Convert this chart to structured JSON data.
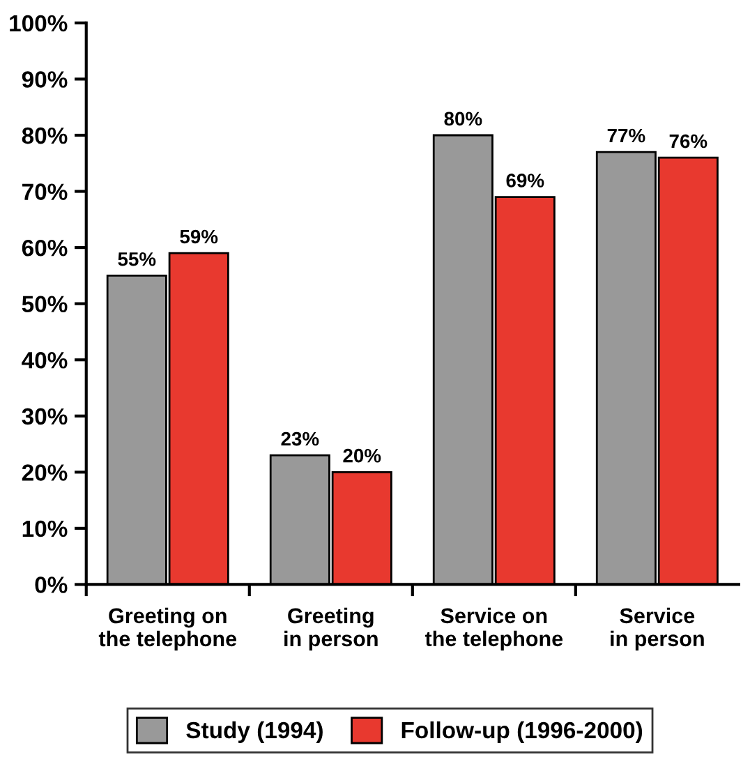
{
  "chart_data": {
    "type": "bar",
    "categories": [
      "Greeting on\nthe telephone",
      "Greeting\nin person",
      "Service on\nthe telephone",
      "Service\nin person"
    ],
    "series": [
      {
        "name": "Study (1994)",
        "color": "#999999",
        "values": [
          55,
          23,
          80,
          77
        ],
        "value_labels": [
          "55%",
          "23%",
          "80%",
          "77%"
        ]
      },
      {
        "name": "Follow-up (1996-2000)",
        "color": "#e8392f",
        "values": [
          59,
          20,
          69,
          76
        ],
        "value_labels": [
          "59%",
          "20%",
          "69%",
          "76%"
        ]
      }
    ],
    "ylim": [
      0,
      100
    ],
    "yticks": [
      {
        "value": 0,
        "label": "0%"
      },
      {
        "value": 10,
        "label": "10%"
      },
      {
        "value": 20,
        "label": "20%"
      },
      {
        "value": 30,
        "label": "30%"
      },
      {
        "value": 40,
        "label": "40%"
      },
      {
        "value": 50,
        "label": "50%"
      },
      {
        "value": 60,
        "label": "60%"
      },
      {
        "value": 70,
        "label": "70%"
      },
      {
        "value": 80,
        "label": "80%"
      },
      {
        "value": 90,
        "label": "90%"
      },
      {
        "value": 100,
        "label": "100%"
      }
    ],
    "grid": false,
    "legend": "bottom"
  }
}
